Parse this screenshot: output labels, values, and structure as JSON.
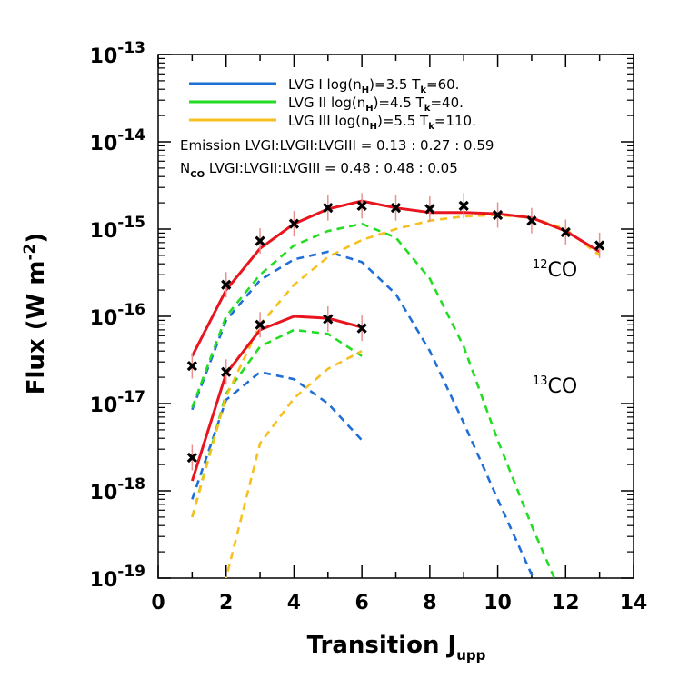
{
  "chart_data": {
    "type": "line",
    "xlabel": "Transition J",
    "xlabel_sub": "upp",
    "ylabel": "Flux (W m",
    "ylabel_sup": "-2",
    "ylabel_end": ")",
    "xlim": [
      0,
      14
    ],
    "ylim_log10": [
      -19,
      -13
    ],
    "yscale": "log",
    "x_ticks": [
      0,
      2,
      4,
      6,
      8,
      10,
      12,
      14
    ],
    "y_ticks": [
      {
        "base": "10",
        "exp": "-13",
        "value": 1e-13
      },
      {
        "base": "10",
        "exp": "-14",
        "value": 1e-14
      },
      {
        "base": "10",
        "exp": "-15",
        "value": 1e-15
      },
      {
        "base": "10",
        "exp": "-16",
        "value": 1e-16
      },
      {
        "base": "10",
        "exp": "-17",
        "value": 1e-17
      },
      {
        "base": "10",
        "exp": "-18",
        "value": 1e-18
      },
      {
        "base": "10",
        "exp": "-19",
        "value": 1e-19
      }
    ],
    "legend": [
      {
        "label_pre": "LVG I log(n",
        "label_sub1": "H",
        "label_mid": ")=3.5 T",
        "label_sub2": "k",
        "label_post": "=60.",
        "color": "#1f6fd6"
      },
      {
        "label_pre": "LVG II log(n",
        "label_sub1": "H",
        "label_mid": ")=4.5 T",
        "label_sub2": "k",
        "label_post": "=40.",
        "color": "#22dd22"
      },
      {
        "label_pre": "LVG III log(n",
        "label_sub1": "H",
        "label_mid": ")=5.5 T",
        "label_sub2": "k",
        "label_post": "=110.",
        "color": "#f5c020"
      }
    ],
    "notes": {
      "emission": "Emission LVGI:LVGII:LVGIII = 0.13 : 0.27 : 0.59",
      "nco_main": "N",
      "nco_sub": "CO",
      "nco_rest": " LVGI:LVGII:LVGIII = 0.48 : 0.48 : 0.05"
    },
    "series_labels": [
      {
        "sup": "12",
        "text": "CO"
      },
      {
        "sup": "13",
        "text": "CO"
      }
    ],
    "colors": {
      "total": "#e8141e",
      "lvg1": "#1f6fd6",
      "lvg2": "#22dd22",
      "lvg3": "#f5c020",
      "marker": "#000000",
      "errorbar": "#e89090"
    },
    "series": [
      {
        "name": "12CO total",
        "kind": "total",
        "x": [
          1,
          2,
          3,
          4,
          5,
          6,
          7,
          8,
          9,
          10,
          11,
          12,
          13
        ],
        "y": [
          3.5e-17,
          2e-16,
          6e-16,
          1.15e-15,
          1.7e-15,
          2.1e-15,
          1.75e-15,
          1.55e-15,
          1.55e-15,
          1.5e-15,
          1.35e-15,
          9.5e-16,
          5.5e-16
        ]
      },
      {
        "name": "12CO LVG I",
        "kind": "lvg1",
        "x": [
          1,
          2,
          3,
          4,
          5,
          6,
          7,
          8,
          9,
          10,
          11,
          12,
          12.5
        ],
        "y": [
          8.5e-18,
          9e-17,
          2.6e-16,
          4.5e-16,
          5.5e-16,
          4.2e-16,
          1.8e-16,
          4e-17,
          6e-18,
          8e-19,
          1.1e-19,
          1.5e-20,
          5e-21
        ]
      },
      {
        "name": "12CO LVG II",
        "kind": "lvg2",
        "x": [
          1,
          2,
          3,
          4,
          5,
          6,
          7,
          8,
          9,
          10,
          11,
          12,
          12.5
        ],
        "y": [
          9e-18,
          1e-16,
          3e-16,
          6.5e-16,
          9.5e-16,
          1.15e-15,
          8e-16,
          2.7e-16,
          4.5e-17,
          3.8e-18,
          4e-19,
          5e-20,
          1.6e-20
        ]
      },
      {
        "name": "12CO LVG III",
        "kind": "lvg3",
        "x": [
          1,
          2,
          3,
          4,
          5,
          6,
          7,
          8,
          9,
          10,
          11,
          12,
          13
        ],
        "y": [
          5e-19,
          1.2e-17,
          8e-17,
          2.3e-16,
          4.8e-16,
          7.5e-16,
          1e-15,
          1.25e-15,
          1.4e-15,
          1.45e-15,
          1.35e-15,
          1e-15,
          5e-16
        ]
      },
      {
        "name": "13CO total",
        "kind": "total",
        "x": [
          1,
          2,
          3,
          4,
          5,
          6
        ],
        "y": [
          1.3e-18,
          2.2e-17,
          7e-17,
          1e-16,
          9.5e-17,
          7.5e-17
        ]
      },
      {
        "name": "13CO LVG I",
        "kind": "lvg1",
        "x": [
          1,
          2,
          3,
          4,
          5,
          6
        ],
        "y": [
          8e-19,
          1.1e-17,
          2.3e-17,
          1.9e-17,
          1e-17,
          3.8e-18
        ]
      },
      {
        "name": "13CO LVG II",
        "kind": "lvg2",
        "x": [
          1,
          2,
          3,
          4,
          5,
          6
        ],
        "y": [
          5e-19,
          1.3e-17,
          4.5e-17,
          7e-17,
          6.3e-17,
          3.5e-17
        ]
      },
      {
        "name": "13CO LVG III",
        "kind": "lvg3",
        "x": [
          1.5,
          2,
          3,
          4,
          5,
          6
        ],
        "y": [
          5e-20,
          1e-19,
          3.5e-18,
          1.15e-17,
          2.5e-17,
          4e-17
        ]
      }
    ],
    "observations": [
      {
        "name": "12CO observed",
        "x": [
          1,
          2,
          3,
          4,
          5,
          6,
          7,
          8,
          9,
          10,
          11,
          12,
          13
        ],
        "y": [
          2.7e-17,
          2.3e-16,
          7.3e-16,
          1.15e-15,
          1.75e-15,
          1.85e-15,
          1.75e-15,
          1.7e-15,
          1.85e-15,
          1.45e-15,
          1.25e-15,
          9.2e-16,
          6.5e-16
        ]
      },
      {
        "name": "13CO observed",
        "x": [
          1,
          2,
          3,
          5,
          6
        ],
        "y": [
          2.4e-18,
          2.3e-17,
          8e-17,
          9.3e-17,
          7.3e-17
        ]
      }
    ]
  }
}
